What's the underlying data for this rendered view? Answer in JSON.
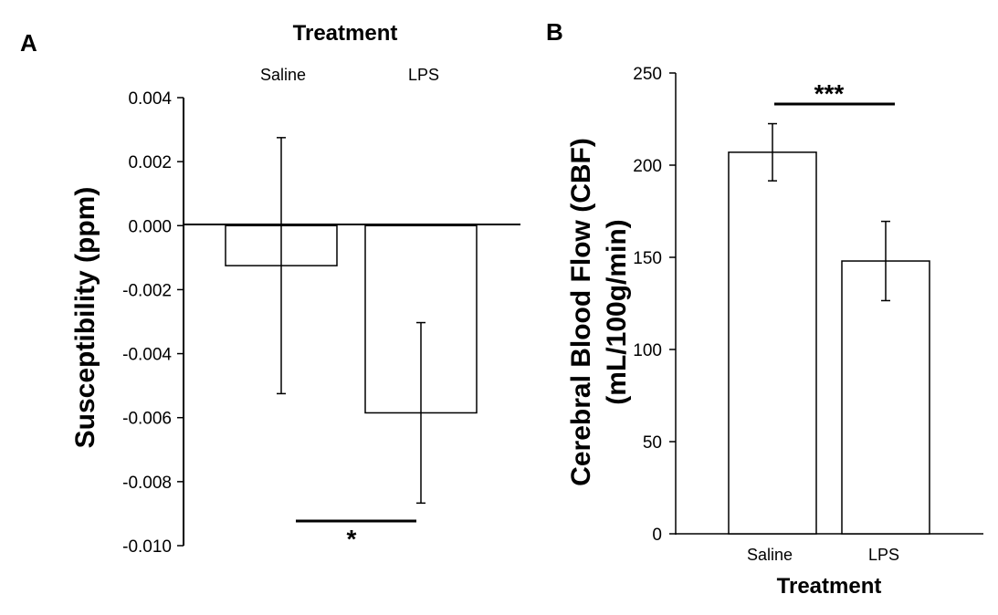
{
  "chart_data": [
    {
      "panel": "A",
      "type": "bar",
      "title": "Treatment",
      "xlabel": "Treatment",
      "ylabel": "Susceptibility (ppm)",
      "categories": [
        "Saline",
        "LPS"
      ],
      "values": [
        -0.00125,
        -0.00585
      ],
      "error": [
        0.004,
        0.00282
      ],
      "ylim": [
        -0.01,
        0.004
      ],
      "yticks": [
        "0.004",
        "0.002",
        "0.000",
        "-0.002",
        "-0.004",
        "-0.006",
        "-0.008",
        "-0.010"
      ],
      "significance": "*"
    },
    {
      "panel": "B",
      "type": "bar",
      "xlabel": "Treatment",
      "ylabel": "Cerebral Blood Flow (CBF)",
      "ylabel2": "(mL/100g/min)",
      "categories": [
        "Saline",
        "LPS"
      ],
      "values": [
        207,
        148
      ],
      "error": [
        15.5,
        21.5
      ],
      "ylim": [
        0,
        250
      ],
      "yticks": [
        "250",
        "200",
        "150",
        "100",
        "50",
        "0"
      ],
      "significance": "***"
    }
  ]
}
